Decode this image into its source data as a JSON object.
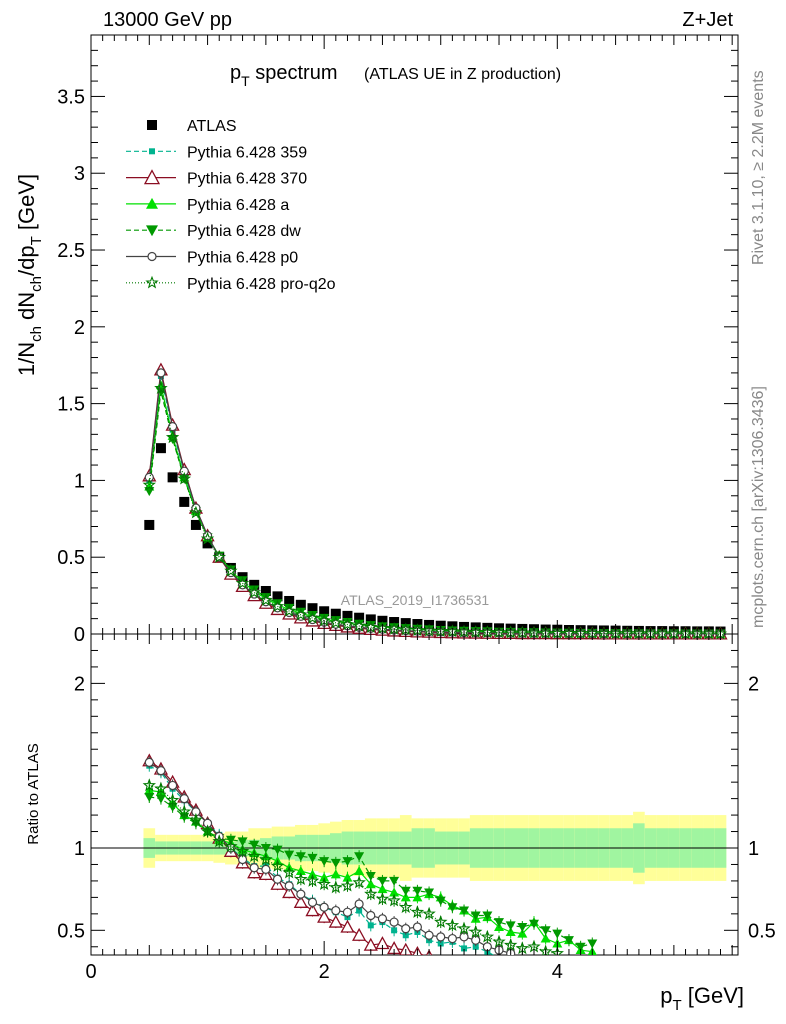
{
  "header": {
    "energy": "13000 GeV pp",
    "process": "Z+Jet",
    "side_rivet": "Rivet 3.1.10, ≥ 2.2M events",
    "side_mcplots": "mcplots.cern.ch [arXiv:1306.3436]",
    "analysis_id": "ATLAS_2019_I1736531"
  },
  "title": {
    "main": "p",
    "main_sub": "T",
    "main_rest": " spectrum",
    "paren": "(ATLAS UE in Z production)"
  },
  "axes": {
    "top_ylabel": "1/N_ch dN_ch/dp_T [GeV]",
    "bottom_ylabel": "Ratio to ATLAS",
    "xlabel": "p_T [GeV]"
  },
  "colors": {
    "data": "#000000",
    "p359": "#00b38f",
    "p370": "#8b0e22",
    "pa": "#00e000",
    "pdw": "#009900",
    "pp0": "#444444",
    "pq2o": "#007a00",
    "band_inner": "#a0f5a0",
    "band_outer": "#ffff99"
  },
  "chart_data": [
    {
      "type": "scatter",
      "panel": "main",
      "title": "p_T spectrum (ATLAS UE in Z production)",
      "xlabel": "p_T [GeV]",
      "ylabel": "1/N_ch dN_ch/dp_T [GeV]",
      "xlim": [
        0,
        5.55
      ],
      "ylim": [
        0,
        3.9
      ],
      "x": [
        0.5,
        0.6,
        0.7,
        0.8,
        0.9,
        1.0,
        1.1,
        1.2,
        1.3,
        1.4,
        1.5,
        1.6,
        1.7,
        1.8,
        1.9,
        2.0,
        2.1,
        2.2,
        2.3,
        2.4,
        2.5,
        2.6,
        2.7,
        2.8,
        2.9,
        3.0,
        3.1,
        3.2,
        3.3,
        3.4,
        3.5,
        3.6,
        3.7,
        3.8,
        3.9,
        4.0,
        4.1,
        4.2,
        4.3,
        4.4,
        4.5,
        4.6,
        4.7,
        4.8,
        4.9,
        5.0,
        5.1,
        5.2,
        5.3,
        5.4
      ],
      "series": [
        {
          "name": "ATLAS",
          "values": [
            0.71,
            1.21,
            1.02,
            0.86,
            0.71,
            0.59,
            0.5,
            0.43,
            0.37,
            0.32,
            0.28,
            0.245,
            0.215,
            0.19,
            0.168,
            0.148,
            0.132,
            0.118,
            0.106,
            0.095,
            0.086,
            0.078,
            0.071,
            0.065,
            0.059,
            0.054,
            0.05,
            0.046,
            0.043,
            0.04,
            0.037,
            0.035,
            0.033,
            0.031,
            0.029,
            0.028,
            0.026,
            0.025,
            0.024,
            0.023,
            0.022,
            0.021,
            0.02,
            0.019,
            0.019,
            0.018,
            0.018,
            0.017,
            0.017,
            0.016
          ]
        },
        {
          "name": "Pythia 6.428 359",
          "values": [
            1.0,
            1.68,
            1.33,
            1.05,
            0.81,
            0.63,
            0.5,
            0.4,
            0.32,
            0.26,
            0.21,
            0.17,
            0.14,
            0.11,
            0.09,
            0.073,
            0.06,
            0.05,
            0.041,
            0.034,
            0.028,
            0.024,
            0.02,
            0.017,
            0.014,
            0.012,
            0.01,
            0.009,
            0.008,
            0.007,
            0.006,
            0.005,
            0.005,
            0.004,
            0.004,
            0.003,
            0.003,
            0.003,
            0.002,
            0.002,
            0.002,
            0.002,
            0.002,
            0.002,
            0.001,
            0.001,
            0.001,
            0.001,
            0.001,
            0.001
          ]
        },
        {
          "name": "Pythia 6.428 370",
          "values": [
            1.03,
            1.72,
            1.36,
            1.07,
            0.82,
            0.64,
            0.5,
            0.39,
            0.31,
            0.25,
            0.2,
            0.16,
            0.13,
            0.105,
            0.085,
            0.069,
            0.056,
            0.046,
            0.037,
            0.03,
            0.025,
            0.02,
            0.017,
            0.014,
            0.012,
            0.01,
            0.008,
            0.007,
            0.006,
            0.005,
            0.004,
            0.004,
            0.003,
            0.003,
            0.003,
            0.002,
            0.002,
            0.002,
            0.002,
            0.001,
            0.001,
            0.001,
            0.001,
            0.001,
            0.001,
            0.001,
            0.001,
            0.001,
            0.001,
            0.001
          ]
        },
        {
          "name": "Pythia 6.428 a",
          "values": [
            0.96,
            1.62,
            1.29,
            1.02,
            0.8,
            0.63,
            0.51,
            0.41,
            0.34,
            0.28,
            0.23,
            0.19,
            0.16,
            0.135,
            0.115,
            0.098,
            0.083,
            0.071,
            0.061,
            0.053,
            0.046,
            0.04,
            0.035,
            0.031,
            0.027,
            0.024,
            0.021,
            0.019,
            0.017,
            0.015,
            0.013,
            0.012,
            0.011,
            0.01,
            0.009,
            0.008,
            0.007,
            0.006,
            0.006,
            0.005,
            0.005,
            0.004,
            0.004,
            0.004,
            0.003,
            0.003,
            0.003,
            0.003,
            0.002,
            0.002
          ]
        },
        {
          "name": "Pythia 6.428 dw",
          "values": [
            0.93,
            1.58,
            1.27,
            1.01,
            0.8,
            0.63,
            0.51,
            0.42,
            0.35,
            0.29,
            0.24,
            0.2,
            0.17,
            0.145,
            0.124,
            0.105,
            0.09,
            0.078,
            0.067,
            0.058,
            0.05,
            0.044,
            0.038,
            0.034,
            0.03,
            0.026,
            0.023,
            0.021,
            0.019,
            0.017,
            0.015,
            0.014,
            0.012,
            0.011,
            0.01,
            0.009,
            0.008,
            0.007,
            0.007,
            0.006,
            0.006,
            0.005,
            0.005,
            0.004,
            0.004,
            0.004,
            0.003,
            0.003,
            0.003,
            0.003
          ]
        },
        {
          "name": "Pythia 6.428 p0",
          "values": [
            1.02,
            1.7,
            1.35,
            1.06,
            0.82,
            0.64,
            0.5,
            0.4,
            0.32,
            0.26,
            0.21,
            0.17,
            0.14,
            0.115,
            0.094,
            0.077,
            0.064,
            0.053,
            0.044,
            0.037,
            0.031,
            0.026,
            0.022,
            0.019,
            0.016,
            0.014,
            0.012,
            0.01,
            0.009,
            0.008,
            0.007,
            0.006,
            0.005,
            0.005,
            0.004,
            0.004,
            0.003,
            0.003,
            0.003,
            0.002,
            0.002,
            0.002,
            0.002,
            0.002,
            0.001,
            0.001,
            0.001,
            0.001,
            0.001,
            0.001
          ]
        },
        {
          "name": "Pythia 6.428 pro-q2o",
          "values": [
            0.97,
            1.6,
            1.28,
            1.01,
            0.79,
            0.62,
            0.5,
            0.41,
            0.33,
            0.27,
            0.22,
            0.18,
            0.15,
            0.125,
            0.104,
            0.087,
            0.073,
            0.062,
            0.052,
            0.044,
            0.038,
            0.032,
            0.028,
            0.024,
            0.021,
            0.018,
            0.016,
            0.014,
            0.012,
            0.011,
            0.01,
            0.009,
            0.008,
            0.007,
            0.006,
            0.005,
            0.005,
            0.004,
            0.004,
            0.004,
            0.003,
            0.003,
            0.003,
            0.002,
            0.002,
            0.002,
            0.002,
            0.002,
            0.002,
            0.001
          ]
        }
      ]
    },
    {
      "type": "line",
      "panel": "ratio",
      "ylabel": "Ratio to ATLAS",
      "xlabel": "p_T [GeV]",
      "xlim": [
        0,
        5.55
      ],
      "ylim": [
        0.35,
        2.3
      ],
      "reference_line": 1,
      "x": [
        0.5,
        0.6,
        0.7,
        0.8,
        0.9,
        1.0,
        1.1,
        1.2,
        1.3,
        1.4,
        1.5,
        1.6,
        1.7,
        1.8,
        1.9,
        2.0,
        2.1,
        2.2,
        2.3,
        2.4,
        2.5,
        2.6,
        2.7,
        2.8,
        2.9,
        3.0,
        3.1,
        3.2,
        3.3,
        3.4,
        3.5,
        3.6,
        3.7,
        3.8,
        3.9,
        4.0,
        4.1,
        4.2,
        4.3
      ],
      "series": [
        {
          "name": "Pythia 6.428 359",
          "values": [
            1.5,
            1.46,
            1.36,
            1.29,
            1.22,
            1.15,
            1.08,
            1.0,
            0.94,
            0.89,
            0.89,
            0.82,
            0.78,
            0.72,
            0.68,
            0.64,
            0.61,
            0.58,
            0.62,
            0.53,
            0.55,
            0.5,
            0.47,
            0.49,
            0.44,
            0.42,
            0.43,
            0.39,
            0.4,
            0.37,
            0.33,
            null,
            null,
            null,
            null,
            null,
            null,
            null,
            null
          ]
        },
        {
          "name": "Pythia 6.428 370",
          "values": [
            1.53,
            1.48,
            1.4,
            1.31,
            1.23,
            1.15,
            1.06,
            0.98,
            0.91,
            0.85,
            0.84,
            0.78,
            0.73,
            0.67,
            0.62,
            0.58,
            0.55,
            0.52,
            0.47,
            0.41,
            0.42,
            0.39,
            0.38,
            0.36,
            0.34,
            null,
            null,
            null,
            null,
            null,
            null,
            null,
            null,
            null,
            null,
            null,
            null,
            null,
            null
          ]
        },
        {
          "name": "Pythia 6.428 a",
          "values": [
            1.35,
            1.34,
            1.27,
            1.2,
            1.16,
            1.1,
            1.05,
            1.03,
            0.99,
            0.97,
            0.95,
            0.92,
            0.88,
            0.86,
            0.84,
            0.82,
            0.84,
            0.82,
            0.86,
            0.78,
            0.75,
            0.73,
            0.7,
            0.7,
            0.72,
            0.7,
            0.65,
            0.62,
            0.57,
            0.58,
            0.52,
            0.49,
            0.48,
            0.55,
            0.45,
            0.42,
            0.44,
            0.38,
            0.37
          ]
        },
        {
          "name": "Pythia 6.428 dw",
          "values": [
            1.31,
            1.3,
            1.25,
            1.19,
            1.15,
            1.1,
            1.06,
            1.05,
            1.04,
            1.02,
            1.0,
            0.99,
            0.96,
            0.95,
            0.94,
            0.92,
            0.91,
            0.92,
            0.95,
            0.83,
            0.8,
            0.8,
            0.74,
            0.74,
            0.73,
            0.68,
            0.64,
            0.62,
            0.59,
            0.59,
            0.55,
            0.53,
            0.52,
            0.54,
            0.5,
            0.48,
            0.44,
            0.4,
            0.42
          ]
        },
        {
          "name": "Pythia 6.428 p0",
          "values": [
            1.52,
            1.47,
            1.38,
            1.3,
            1.22,
            1.15,
            1.07,
            1.0,
            0.93,
            0.88,
            0.87,
            0.81,
            0.77,
            0.72,
            0.67,
            0.64,
            0.62,
            0.61,
            0.66,
            0.59,
            0.57,
            0.55,
            0.51,
            0.52,
            0.47,
            0.46,
            0.45,
            0.46,
            0.44,
            0.4,
            0.38,
            0.36,
            null,
            null,
            null,
            null,
            null,
            null,
            null
          ]
        },
        {
          "name": "Pythia 6.428 pro-q2o",
          "values": [
            1.38,
            1.36,
            1.29,
            1.22,
            1.17,
            1.1,
            1.04,
            1.01,
            0.98,
            0.95,
            0.93,
            0.89,
            0.85,
            0.81,
            0.8,
            0.78,
            0.76,
            0.77,
            0.79,
            0.72,
            0.69,
            0.68,
            0.64,
            0.61,
            0.6,
            0.55,
            0.53,
            0.51,
            0.49,
            0.46,
            0.43,
            0.41,
            0.39,
            0.4,
            0.37,
            0.36,
            null,
            null,
            null
          ]
        }
      ],
      "uncertainty_band": {
        "x": [
          0.5,
          0.6,
          0.7,
          0.8,
          0.9,
          1.0,
          1.1,
          1.2,
          1.3,
          1.4,
          1.5,
          1.6,
          1.7,
          1.8,
          1.9,
          2.0,
          2.1,
          2.2,
          2.3,
          2.4,
          2.5,
          2.6,
          2.7,
          2.8,
          2.9,
          3.0,
          3.1,
          3.2,
          3.3,
          3.4,
          3.5,
          3.6,
          3.7,
          3.8,
          3.9,
          4.0,
          4.1,
          4.2,
          4.3,
          4.4,
          4.5,
          4.6,
          4.7,
          4.8,
          4.9,
          5.0,
          5.1,
          5.2,
          5.3,
          5.4
        ],
        "inner_half_width": [
          0.06,
          0.04,
          0.04,
          0.04,
          0.04,
          0.04,
          0.04,
          0.04,
          0.05,
          0.05,
          0.06,
          0.07,
          0.07,
          0.08,
          0.08,
          0.08,
          0.09,
          0.1,
          0.1,
          0.1,
          0.1,
          0.1,
          0.1,
          0.12,
          0.12,
          0.1,
          0.1,
          0.1,
          0.12,
          0.12,
          0.12,
          0.12,
          0.12,
          0.12,
          0.12,
          0.12,
          0.12,
          0.12,
          0.12,
          0.12,
          0.12,
          0.12,
          0.15,
          0.12,
          0.12,
          0.12,
          0.12,
          0.12,
          0.12,
          0.12
        ],
        "outer_half_width": [
          0.12,
          0.08,
          0.08,
          0.08,
          0.08,
          0.08,
          0.09,
          0.1,
          0.1,
          0.12,
          0.12,
          0.13,
          0.13,
          0.14,
          0.14,
          0.15,
          0.16,
          0.17,
          0.17,
          0.18,
          0.18,
          0.18,
          0.2,
          0.18,
          0.18,
          0.18,
          0.18,
          0.18,
          0.2,
          0.2,
          0.2,
          0.2,
          0.2,
          0.2,
          0.2,
          0.2,
          0.2,
          0.2,
          0.2,
          0.2,
          0.2,
          0.2,
          0.22,
          0.2,
          0.2,
          0.2,
          0.2,
          0.2,
          0.2,
          0.2
        ]
      }
    }
  ]
}
